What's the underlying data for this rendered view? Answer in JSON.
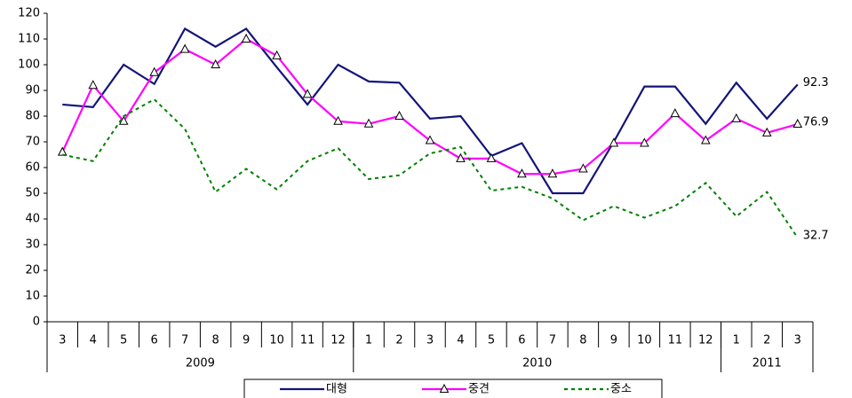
{
  "chart_data": {
    "type": "line",
    "categories": [
      "3",
      "4",
      "5",
      "6",
      "7",
      "8",
      "9",
      "10",
      "11",
      "12",
      "1",
      "2",
      "3",
      "4",
      "5",
      "6",
      "7",
      "8",
      "9",
      "10",
      "11",
      "12",
      "1",
      "2",
      "3"
    ],
    "year_groups": [
      {
        "label": "2009",
        "count": 10
      },
      {
        "label": "2010",
        "count": 12
      },
      {
        "label": "2011",
        "count": 3
      }
    ],
    "ylim": [
      0,
      120
    ],
    "yticks": [
      0,
      10,
      20,
      30,
      40,
      50,
      60,
      70,
      80,
      90,
      100,
      110,
      120
    ],
    "grid": false,
    "legend": "bottom",
    "label_last": true,
    "series": [
      {
        "name": "대형",
        "color": "#141478",
        "dash": false,
        "marker": "none",
        "values": [
          84.5,
          83.5,
          100,
          92.5,
          114,
          107,
          114,
          99,
          84.5,
          100,
          93.5,
          93,
          79,
          80,
          64.5,
          69.5,
          50,
          50,
          70,
          91.5,
          91.5,
          77,
          93,
          79,
          92.3
        ]
      },
      {
        "name": "중견",
        "color": "#ff00ff",
        "dash": false,
        "marker": "triangle",
        "values": [
          66,
          92,
          78,
          97,
          106,
          100,
          110,
          103.5,
          88.5,
          78,
          77,
          80,
          70.5,
          63.5,
          63.5,
          57.5,
          57.5,
          59.5,
          69.5,
          69.5,
          81,
          70.5,
          79,
          73.5,
          76.9
        ]
      },
      {
        "name": "중소",
        "color": "#008000",
        "dash": true,
        "marker": "none",
        "values": [
          65,
          62.5,
          80,
          86.5,
          75,
          50.5,
          59.5,
          51.5,
          62.5,
          67.5,
          55.5,
          57,
          65.5,
          68,
          51,
          52.5,
          48,
          39.5,
          45,
          40.5,
          45,
          54,
          41,
          50.5,
          32.7
        ]
      }
    ]
  }
}
